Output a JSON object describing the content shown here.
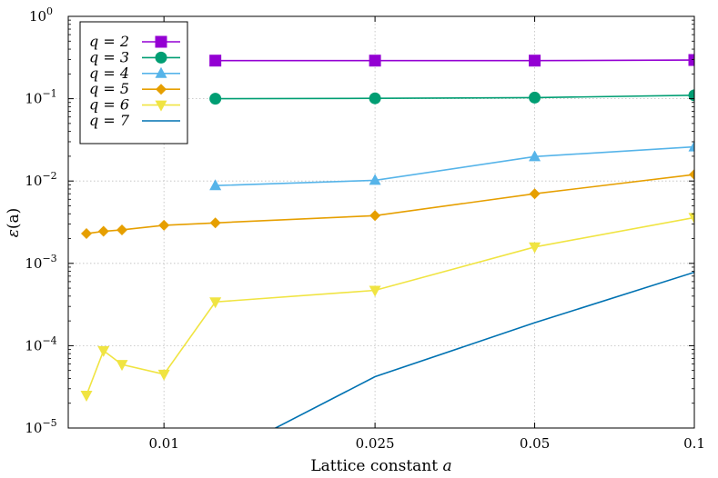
{
  "chart_data": {
    "type": "line",
    "xlabel": "Lattice constant a",
    "ylabel": "ε(a)",
    "x_scale": "log",
    "y_scale": "log",
    "xlim": [
      0.0066,
      0.1
    ],
    "ylim": [
      1e-05,
      1
    ],
    "x_ticks": [
      {
        "value": 0.01,
        "label": "0.01"
      },
      {
        "value": 0.025,
        "label": "0.025"
      },
      {
        "value": 0.05,
        "label": "0.05"
      },
      {
        "value": 0.1,
        "label": "0.1"
      }
    ],
    "y_ticks": [
      {
        "value": 1,
        "label": "10",
        "exp": "0"
      },
      {
        "value": 0.1,
        "label": "10",
        "exp": "−1"
      },
      {
        "value": 0.01,
        "label": "10",
        "exp": "−2"
      },
      {
        "value": 0.001,
        "label": "10",
        "exp": "−3"
      },
      {
        "value": 0.0001,
        "label": "10",
        "exp": "−4"
      },
      {
        "value": 1e-05,
        "label": "10",
        "exp": "−5"
      }
    ],
    "grid": true,
    "legend_position": "top-left",
    "series": [
      {
        "name": "q = 2",
        "color": "#9400d3",
        "marker": "square",
        "x": [
          0.0125,
          0.025,
          0.05,
          0.1
        ],
        "y": [
          0.29,
          0.29,
          0.29,
          0.295
        ]
      },
      {
        "name": "q = 3",
        "color": "#009e73",
        "marker": "circle",
        "x": [
          0.0125,
          0.025,
          0.05,
          0.1
        ],
        "y": [
          0.1,
          0.101,
          0.103,
          0.11
        ]
      },
      {
        "name": "q = 4",
        "color": "#56b4e9",
        "marker": "triangle-up",
        "x": [
          0.0125,
          0.025,
          0.05,
          0.1
        ],
        "y": [
          0.0088,
          0.0102,
          0.0198,
          0.026
        ]
      },
      {
        "name": "q = 5",
        "color": "#e69f00",
        "marker": "diamond",
        "x": [
          0.007143,
          0.007692,
          0.008333,
          0.01,
          0.0125,
          0.025,
          0.05,
          0.1
        ],
        "y": [
          0.0023,
          0.00245,
          0.00255,
          0.0029,
          0.0031,
          0.0038,
          0.007,
          0.012
        ]
      },
      {
        "name": "q = 6",
        "color": "#f0e442",
        "marker": "triangle-down",
        "x": [
          0.007143,
          0.007692,
          0.008333,
          0.01,
          0.0125,
          0.025,
          0.05,
          0.1
        ],
        "y": [
          2.5e-05,
          8.7e-05,
          5.9e-05,
          4.5e-05,
          0.00034,
          0.00047,
          0.00158,
          0.0036
        ]
      },
      {
        "name": "q = 7",
        "color": "#0072b2",
        "marker": "none",
        "x": [
          0.0125,
          0.025,
          0.05,
          0.1
        ],
        "y": [
          4.2e-06,
          4.2e-05,
          0.00019,
          0.00078
        ]
      }
    ]
  }
}
